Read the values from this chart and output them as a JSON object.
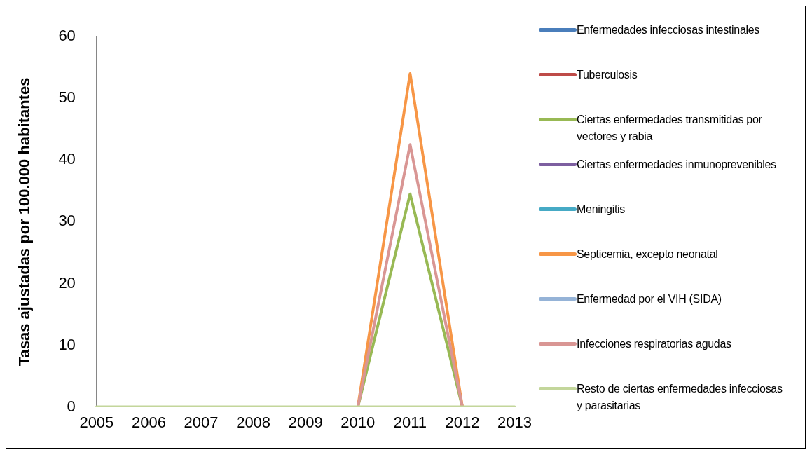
{
  "chart_data": {
    "type": "line",
    "ylabel": "Tasas ajustadas por 100.000 habitantes",
    "categories": [
      "2005",
      "2006",
      "2007",
      "2008",
      "2009",
      "2010",
      "2011",
      "2012",
      "2013"
    ],
    "ylim": [
      0,
      60
    ],
    "yticks": [
      0,
      10,
      20,
      30,
      40,
      50,
      60
    ],
    "grid": false,
    "legend": "right",
    "marker": "none",
    "line_style": "solid",
    "series": [
      {
        "name": "Enfermedades infecciosas intestinales",
        "color": "#4a7ebb",
        "values": [
          null,
          null,
          null,
          null,
          null,
          null,
          null,
          null,
          null
        ]
      },
      {
        "name": "Tuberculosis",
        "color": "#be4b48",
        "values": [
          null,
          null,
          null,
          null,
          null,
          null,
          null,
          null,
          null
        ]
      },
      {
        "name": "Ciertas enfermedades transmitidas por vectores y rabia",
        "color": "#98b954",
        "values": [
          null,
          null,
          null,
          null,
          null,
          0,
          34.5,
          0,
          null
        ]
      },
      {
        "name": "Ciertas enfermedades inmunoprevenibles",
        "color": "#7d5fa0",
        "values": [
          null,
          null,
          null,
          null,
          null,
          null,
          null,
          null,
          null
        ]
      },
      {
        "name": "Meningitis",
        "color": "#46aac5",
        "values": [
          null,
          null,
          null,
          null,
          null,
          null,
          null,
          null,
          null
        ]
      },
      {
        "name": "Septicemia, excepto neonatal",
        "color": "#f79646",
        "values": [
          null,
          null,
          null,
          null,
          null,
          0,
          54,
          0,
          null
        ]
      },
      {
        "name": "Enfermedad por el VIH (SIDA)",
        "color": "#95b3d7",
        "values": [
          null,
          null,
          null,
          null,
          null,
          null,
          null,
          null,
          null
        ]
      },
      {
        "name": "Infecciones respiratorias agudas",
        "color": "#d99694",
        "values": [
          null,
          null,
          null,
          null,
          null,
          0,
          42.5,
          0,
          null
        ]
      },
      {
        "name": "Resto de ciertas enfermedades infecciosas y parasitarias",
        "color": "#c3d69b",
        "values": [
          0,
          0,
          0,
          0,
          0,
          0,
          0,
          0,
          0
        ]
      }
    ]
  }
}
